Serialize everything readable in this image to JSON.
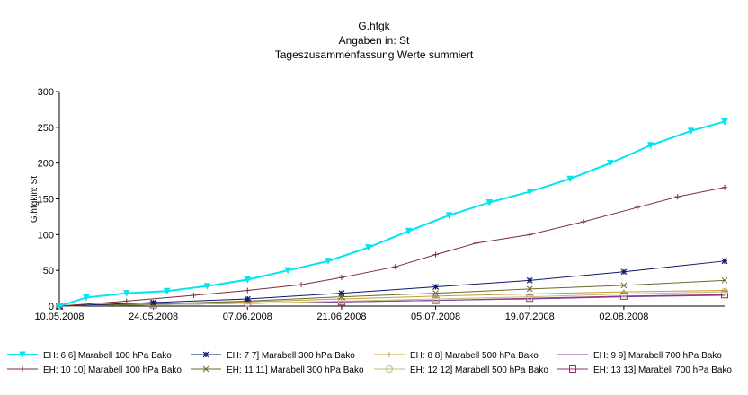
{
  "chart_data": {
    "type": "line",
    "title": "G.hfgk",
    "subtitle_1": "Angaben in: St",
    "subtitle_2": "Tageszusammenfassung Werte summiert",
    "ylabel": "G.hfgkin: St",
    "xlabel": "",
    "ylim": [
      0,
      300
    ],
    "y_ticks": [
      0,
      50,
      100,
      150,
      200,
      250,
      300
    ],
    "x_ticks": [
      "10.05.2008",
      "24.05.2008",
      "07.06.2008",
      "21.06.2008",
      "05.07.2008",
      "19.07.2008",
      "02.08.2008"
    ],
    "x_range": [
      "2008-05-10",
      "2008-08-17"
    ],
    "grid": false,
    "legend_position": "bottom",
    "series": [
      {
        "name": "EH: 6 6] Marabell 100 hPa Bako",
        "color": "#00e5ee",
        "marker": "triangle-down",
        "x": [
          "2008-05-10",
          "2008-05-14",
          "2008-05-20",
          "2008-05-26",
          "2008-06-01",
          "2008-06-07",
          "2008-06-13",
          "2008-06-19",
          "2008-06-25",
          "2008-07-01",
          "2008-07-07",
          "2008-07-13",
          "2008-07-19",
          "2008-07-25",
          "2008-07-31",
          "2008-08-06",
          "2008-08-12",
          "2008-08-17"
        ],
        "y": [
          0,
          12,
          18,
          21,
          28,
          37,
          50,
          63,
          82,
          105,
          127,
          145,
          160,
          178,
          200,
          225,
          245,
          258
        ]
      },
      {
        "name": "EH: 10 10] Marabell 100 hPa Bako",
        "color": "#7b2c3a",
        "marker": "plus",
        "x": [
          "2008-05-10",
          "2008-05-20",
          "2008-05-30",
          "2008-06-07",
          "2008-06-15",
          "2008-06-21",
          "2008-06-29",
          "2008-07-05",
          "2008-07-11",
          "2008-07-19",
          "2008-07-27",
          "2008-08-04",
          "2008-08-10",
          "2008-08-17"
        ],
        "y": [
          0,
          7,
          15,
          22,
          30,
          40,
          55,
          72,
          88,
          100,
          118,
          138,
          153,
          166
        ]
      },
      {
        "name": "EH: 7 7] Marabell 300 hPa Bako",
        "color": "#0d1a6b",
        "marker": "star",
        "x": [
          "2008-05-10",
          "2008-05-24",
          "2008-06-07",
          "2008-06-21",
          "2008-07-05",
          "2008-07-19",
          "2008-08-02",
          "2008-08-17"
        ],
        "y": [
          0,
          5,
          10,
          18,
          27,
          36,
          48,
          63
        ]
      },
      {
        "name": "EH: 11 11] Marabell 300 hPa Bako",
        "color": "#6a6a2a",
        "marker": "x",
        "x": [
          "2008-05-10",
          "2008-05-24",
          "2008-06-07",
          "2008-06-21",
          "2008-07-05",
          "2008-07-19",
          "2008-08-02",
          "2008-08-17"
        ],
        "y": [
          0,
          3,
          7,
          13,
          18,
          24,
          29,
          36
        ]
      },
      {
        "name": "EH: 8 8] Marabell 500 hPa Bako",
        "color": "#c89a3a",
        "marker": "plus",
        "x": [
          "2008-05-10",
          "2008-05-24",
          "2008-06-07",
          "2008-06-21",
          "2008-07-05",
          "2008-07-19",
          "2008-08-02",
          "2008-08-17"
        ],
        "y": [
          0,
          3,
          6,
          10,
          14,
          17,
          20,
          22
        ]
      },
      {
        "name": "EH: 12 12] Marabell 500 hPa Bako",
        "color": "#b5c27a",
        "marker": "circle",
        "x": [
          "2008-05-10",
          "2008-05-24",
          "2008-06-07",
          "2008-06-21",
          "2008-07-05",
          "2008-07-19",
          "2008-08-02",
          "2008-08-17"
        ],
        "y": [
          0,
          2,
          4,
          7,
          10,
          13,
          17,
          20
        ]
      },
      {
        "name": "EH: 9 9] Marabell 700 hPa Bako",
        "color": "#7d3fa0",
        "marker": "none",
        "x": [
          "2008-05-10",
          "2008-05-24",
          "2008-06-07",
          "2008-06-21",
          "2008-07-05",
          "2008-07-19",
          "2008-08-02",
          "2008-08-17"
        ],
        "y": [
          0,
          2,
          4,
          6,
          8,
          10,
          13,
          15
        ]
      },
      {
        "name": "EH: 13 13] Marabell 700 hPa Bako",
        "color": "#a0287a",
        "marker": "square",
        "x": [
          "2008-05-10",
          "2008-05-24",
          "2008-06-07",
          "2008-06-21",
          "2008-07-05",
          "2008-07-19",
          "2008-08-02",
          "2008-08-17"
        ],
        "y": [
          0,
          2,
          4,
          6,
          8,
          11,
          14,
          16
        ]
      }
    ]
  }
}
